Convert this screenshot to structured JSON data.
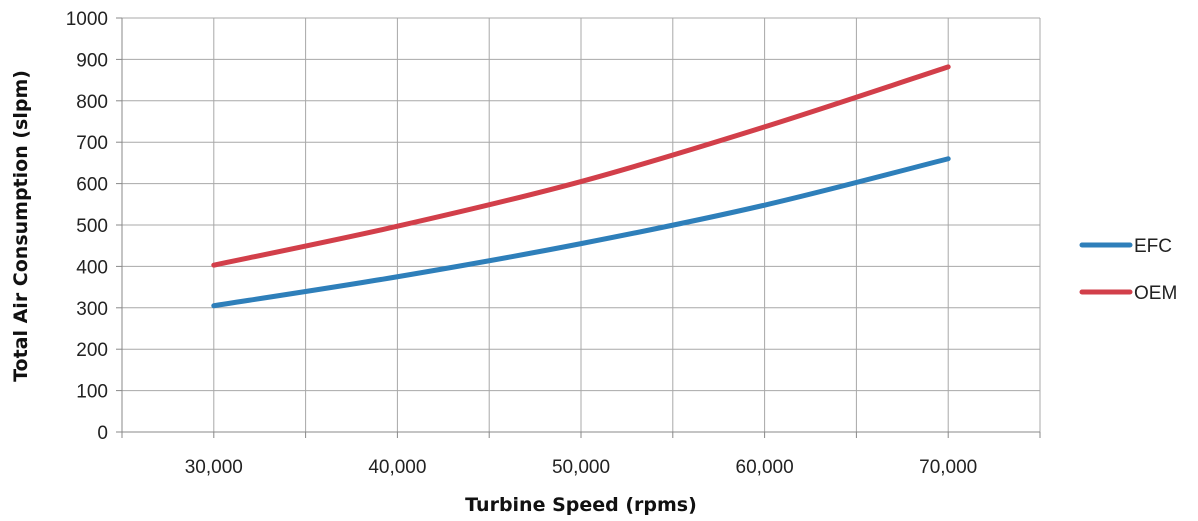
{
  "chart_data": {
    "type": "line",
    "xlabel": "Turbine Speed (rpms)",
    "ylabel": "Total Air Consumption (slpm)",
    "x": [
      30000,
      40000,
      50000,
      60000,
      70000
    ],
    "x_tick_labels": [
      "30,000",
      "40,000",
      "50,000",
      "60,000",
      "70,000"
    ],
    "y_ticks": [
      0,
      100,
      200,
      300,
      400,
      500,
      600,
      700,
      800,
      900,
      1000
    ],
    "ylim": [
      0,
      1000
    ],
    "xlim": [
      25000,
      75000
    ],
    "grid": true,
    "legend_position": "right",
    "series": [
      {
        "name": "EFC",
        "color": "#2e7fba",
        "values": [
          305,
          375,
          455,
          548,
          660
        ]
      },
      {
        "name": "OEM",
        "color": "#d23f4a",
        "values": [
          403,
          497,
          605,
          737,
          882
        ]
      }
    ]
  }
}
